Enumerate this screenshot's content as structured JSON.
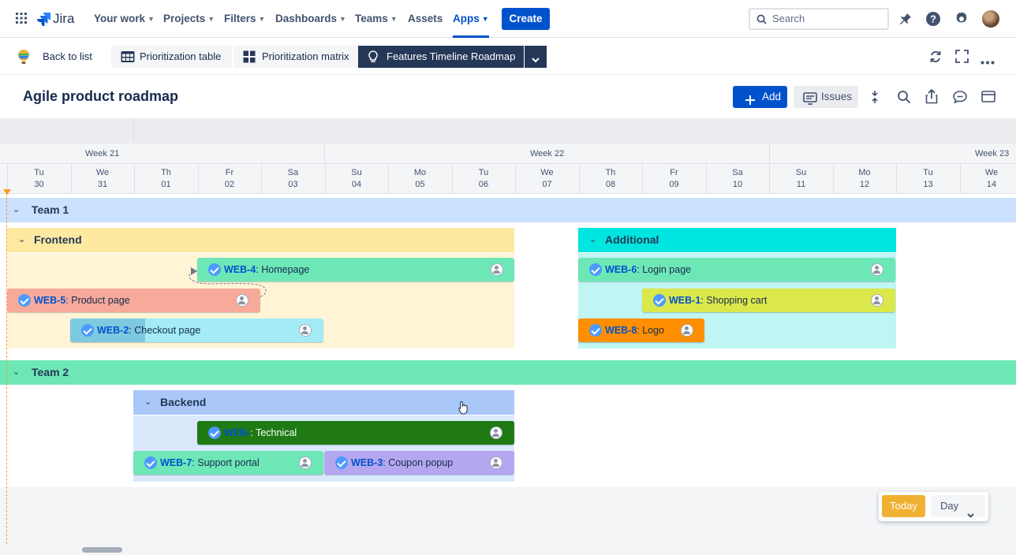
{
  "topnav": {
    "product": "Jira",
    "items": [
      "Your work",
      "Projects",
      "Filters",
      "Dashboards",
      "Teams",
      "Assets",
      "Apps"
    ],
    "create_label": "Create",
    "search_placeholder": "Search"
  },
  "toolbar": {
    "back_label": "Back to list",
    "views": [
      "Prioritization table",
      "Prioritization matrix",
      "Features Timeline Roadmap"
    ]
  },
  "page": {
    "title": "Agile product roadmap",
    "add_label": "Add",
    "issues_label": "Issues"
  },
  "timeline": {
    "weeks": [
      "Week 21",
      "Week 22",
      "Week 23"
    ],
    "days": [
      {
        "name": "Tu",
        "date": "30"
      },
      {
        "name": "We",
        "date": "31"
      },
      {
        "name": "Th",
        "date": "01"
      },
      {
        "name": "Fr",
        "date": "02"
      },
      {
        "name": "Sa",
        "date": "03"
      },
      {
        "name": "Su",
        "date": "04"
      },
      {
        "name": "Mo",
        "date": "05"
      },
      {
        "name": "Tu",
        "date": "06"
      },
      {
        "name": "We",
        "date": "07"
      },
      {
        "name": "Th",
        "date": "08"
      },
      {
        "name": "Fr",
        "date": "09"
      },
      {
        "name": "Sa",
        "date": "10"
      },
      {
        "name": "Su",
        "date": "11"
      },
      {
        "name": "Mo",
        "date": "12"
      },
      {
        "name": "Tu",
        "date": "13"
      },
      {
        "name": "We",
        "date": "14"
      }
    ],
    "teams": [
      {
        "name": "Team 1",
        "groups": [
          {
            "name": "Frontend",
            "issues": [
              {
                "key": "WEB-4",
                "title": "Homepage"
              },
              {
                "key": "WEB-5",
                "title": "Product page"
              },
              {
                "key": "WEB-2",
                "title": "Checkout page"
              }
            ]
          },
          {
            "name": "Additional",
            "issues": [
              {
                "key": "WEB-6",
                "title": "Login page"
              },
              {
                "key": "WEB-1",
                "title": "Shopping cart"
              },
              {
                "key": "WEB-8",
                "title": "Logo"
              }
            ]
          }
        ]
      },
      {
        "name": "Team 2",
        "groups": [
          {
            "name": "Backend",
            "issues": [
              {
                "key": "WEB-",
                "title": "Technical"
              },
              {
                "key": "WEB-7",
                "title": "Support portal"
              },
              {
                "key": "WEB-3",
                "title": "Coupon popup"
              }
            ]
          }
        ]
      }
    ]
  },
  "controls": {
    "today_label": "Today",
    "zoom_value": "Day"
  },
  "colors": {
    "accent": "#0052cc",
    "team1_row": "#cce0ff",
    "team2_row": "#6ee7b7",
    "frontend_group": "#fdeaa0",
    "additional_group": "#00e5e0",
    "backend_group": "#a9c8f8",
    "today": "#ff991f"
  }
}
